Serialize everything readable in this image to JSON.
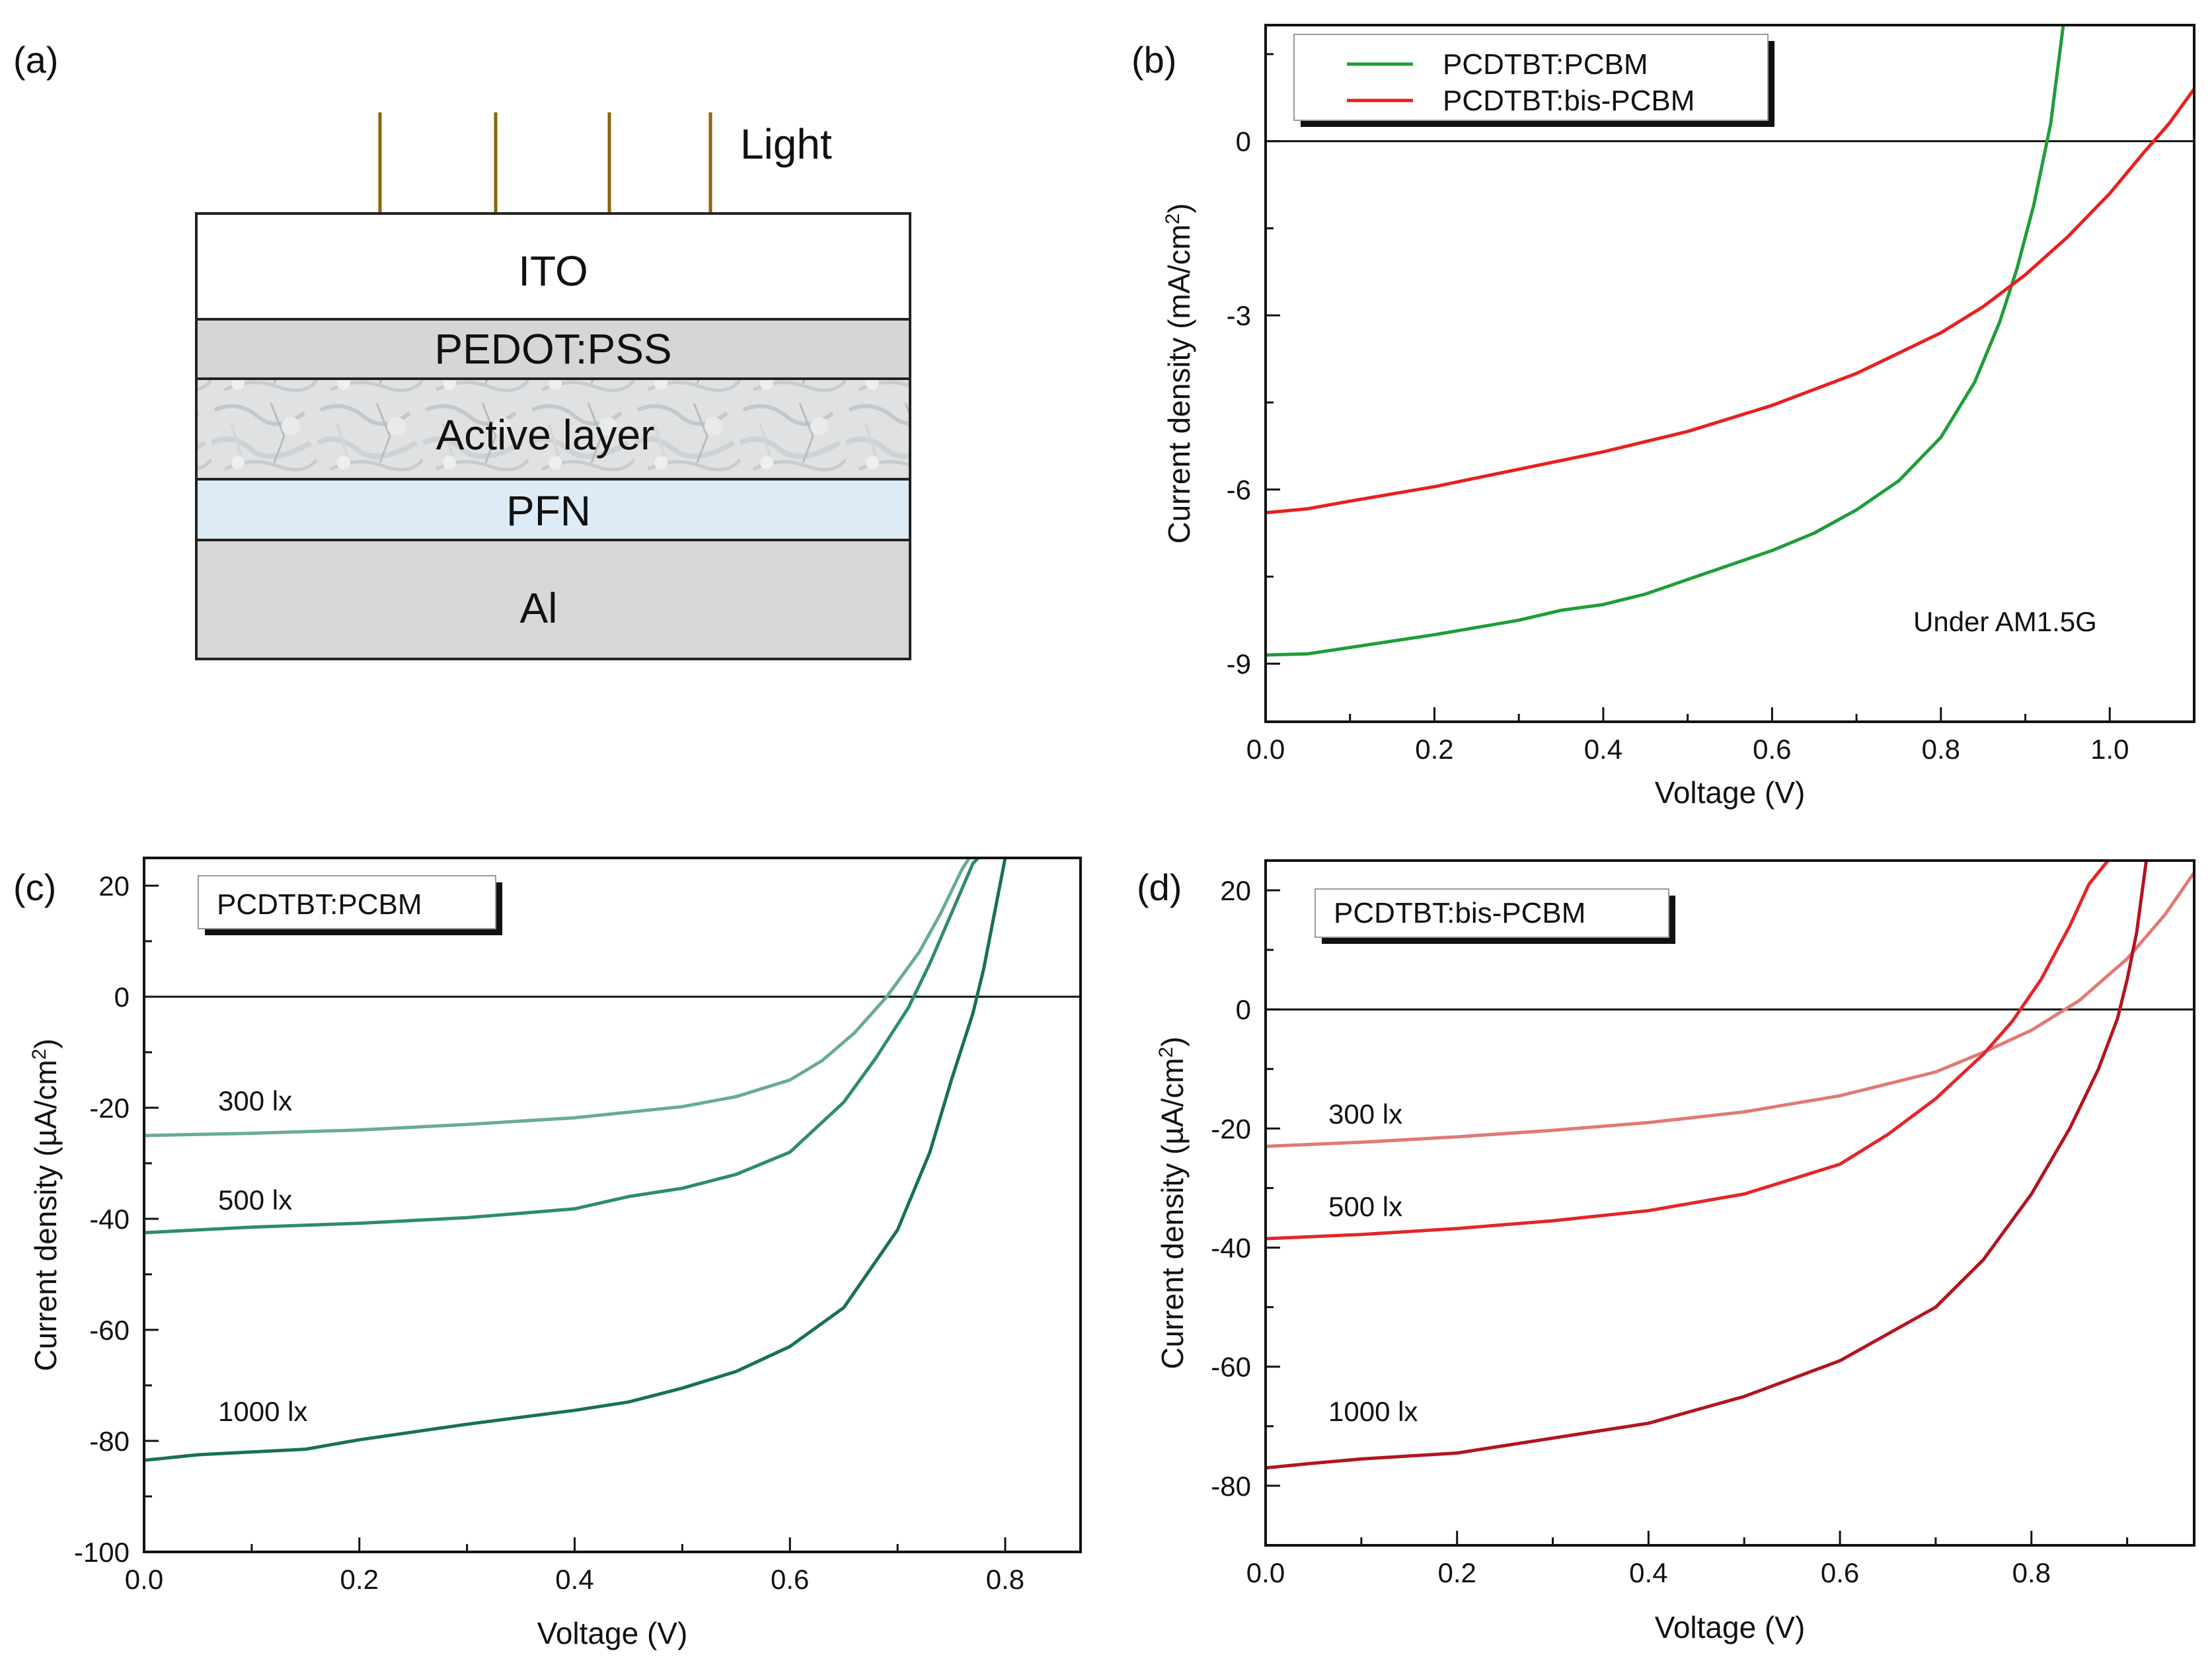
{
  "panel_a": {
    "label": "(a)",
    "light_label": "Light",
    "layers": [
      {
        "name": "ITO",
        "color": "#ffffff"
      },
      {
        "name": "PEDOT:PSS",
        "color": "#d6d6d6"
      },
      {
        "name": "Active layer",
        "color": "#dcdfe0"
      },
      {
        "name": "PFN",
        "color": "#ddebf6"
      },
      {
        "name": "Al",
        "color": "#d7d7d7"
      }
    ],
    "arrow_color": "#8b6508"
  },
  "chart_data": [
    {
      "id": "b",
      "panel_label": "(b)",
      "type": "line",
      "xlabel": "Voltage (V)",
      "ylabel_main": "Current density (mA/cm",
      "ylabel_sup": "2",
      "ylabel_end": ")",
      "xlim": [
        0.0,
        1.1
      ],
      "ylim": [
        -10.0,
        2.0
      ],
      "xticks": [
        0.0,
        0.2,
        0.4,
        0.6,
        0.8,
        1.0
      ],
      "xtick_labels": [
        "0.0",
        "0.2",
        "0.4",
        "0.6",
        "0.8",
        "1.0"
      ],
      "yticks": [
        0,
        -3,
        -6,
        -9
      ],
      "ytick_labels": [
        "0",
        "-3",
        "-6",
        "-9"
      ],
      "annotation": "Under AM1.5G",
      "legend": {
        "entries": [
          "PCDTBT:PCBM",
          "PCDTBT:bis-PCBM"
        ],
        "position": "top-left"
      },
      "series": [
        {
          "name": "PCDTBT:PCBM",
          "color": "#1f9d3a",
          "x": [
            0.0,
            0.05,
            0.1,
            0.2,
            0.3,
            0.35,
            0.4,
            0.45,
            0.5,
            0.55,
            0.6,
            0.65,
            0.7,
            0.75,
            0.8,
            0.84,
            0.87,
            0.89,
            0.91,
            0.93,
            0.945
          ],
          "y": [
            -8.85,
            -8.83,
            -8.72,
            -8.5,
            -8.25,
            -8.08,
            -7.98,
            -7.8,
            -7.55,
            -7.3,
            -7.05,
            -6.75,
            -6.35,
            -5.85,
            -5.1,
            -4.15,
            -3.1,
            -2.2,
            -1.1,
            0.3,
            2.0
          ]
        },
        {
          "name": "PCDTBT:bis-PCBM",
          "color": "#e8201f",
          "x": [
            0.0,
            0.05,
            0.1,
            0.2,
            0.3,
            0.4,
            0.5,
            0.6,
            0.7,
            0.8,
            0.85,
            0.9,
            0.95,
            1.0,
            1.04,
            1.07,
            1.1
          ],
          "y": [
            -6.4,
            -6.33,
            -6.2,
            -5.95,
            -5.65,
            -5.35,
            -5.0,
            -4.55,
            -4.0,
            -3.3,
            -2.85,
            -2.3,
            -1.65,
            -0.9,
            -0.2,
            0.3,
            0.9
          ]
        }
      ]
    },
    {
      "id": "c",
      "panel_label": "(c)",
      "type": "line",
      "xlabel": "Voltage (V)",
      "ylabel_main": "Current density (µA/cm",
      "ylabel_sup": "2",
      "ylabel_end": ")",
      "xlim": [
        0.0,
        0.87
      ],
      "ylim": [
        -100,
        25
      ],
      "xticks": [
        0.0,
        0.2,
        0.4,
        0.6,
        0.8
      ],
      "xtick_labels": [
        "0.0",
        "0.2",
        "0.4",
        "0.6",
        "0.8"
      ],
      "yticks": [
        20,
        0,
        -20,
        -40,
        -60,
        -80,
        -100
      ],
      "ytick_labels": [
        "20",
        "0",
        "-20",
        "-40",
        "-60",
        "-80",
        "-100"
      ],
      "legend": {
        "entries": [
          "PCDTBT:PCBM"
        ],
        "position": "top-left"
      },
      "series": [
        {
          "name": "300 lx",
          "color": "#6aab96",
          "x": [
            0.0,
            0.1,
            0.2,
            0.3,
            0.4,
            0.5,
            0.55,
            0.6,
            0.63,
            0.66,
            0.69,
            0.72,
            0.74,
            0.76,
            0.77
          ],
          "y": [
            -25,
            -24.6,
            -24,
            -23,
            -21.8,
            -19.8,
            -18,
            -15,
            -11.5,
            -6.5,
            0,
            8,
            15,
            23,
            26
          ]
        },
        {
          "name": "500 lx",
          "color": "#2e8b72",
          "x": [
            0.0,
            0.1,
            0.2,
            0.3,
            0.35,
            0.4,
            0.45,
            0.5,
            0.55,
            0.6,
            0.65,
            0.68,
            0.71,
            0.73,
            0.75,
            0.77,
            0.78
          ],
          "y": [
            -42.5,
            -41.5,
            -40.8,
            -39.8,
            -39,
            -38.2,
            -36,
            -34.5,
            -32,
            -28,
            -19,
            -11,
            -2,
            6,
            15,
            24,
            26
          ]
        },
        {
          "name": "1000 lx",
          "color": "#18705a",
          "x": [
            0.0,
            0.05,
            0.1,
            0.15,
            0.2,
            0.3,
            0.4,
            0.45,
            0.5,
            0.55,
            0.6,
            0.65,
            0.7,
            0.73,
            0.75,
            0.77,
            0.78,
            0.79,
            0.8
          ],
          "y": [
            -83.5,
            -82.5,
            -82,
            -81.5,
            -79.8,
            -77,
            -74.5,
            -73,
            -70.5,
            -67.5,
            -63,
            -56,
            -42,
            -28,
            -15,
            -3,
            5,
            15,
            25
          ]
        }
      ],
      "annotations": [
        "300 lx",
        "500 lx",
        "1000 lx"
      ]
    },
    {
      "id": "d",
      "panel_label": "(d)",
      "type": "line",
      "xlabel": "Voltage (V)",
      "ylabel_main": "Current density (µA/cm",
      "ylabel_sup": "2",
      "ylabel_end": ")",
      "xlim": [
        0.0,
        0.97
      ],
      "ylim": [
        -90,
        25
      ],
      "xticks": [
        0.0,
        0.2,
        0.4,
        0.6,
        0.8
      ],
      "xtick_labels": [
        "0.0",
        "0.2",
        "0.4",
        "0.6",
        "0.8"
      ],
      "yticks": [
        20,
        0,
        -20,
        -40,
        -60,
        -80
      ],
      "ytick_labels": [
        "20",
        "0",
        "-20",
        "-40",
        "-60",
        "-80"
      ],
      "legend": {
        "entries": [
          "PCDTBT:bis-PCBM"
        ],
        "position": "top-left"
      },
      "series": [
        {
          "name": "300 lx",
          "color": "#e07a74",
          "x": [
            0.0,
            0.1,
            0.2,
            0.3,
            0.4,
            0.5,
            0.6,
            0.7,
            0.75,
            0.8,
            0.85,
            0.9,
            0.94,
            0.97
          ],
          "y": [
            -23,
            -22.3,
            -21.4,
            -20.3,
            -19,
            -17.2,
            -14.5,
            -10.5,
            -7.2,
            -3.5,
            1.5,
            8.5,
            16,
            23
          ]
        },
        {
          "name": "500 lx",
          "color": "#e3262a",
          "x": [
            0.0,
            0.1,
            0.2,
            0.3,
            0.4,
            0.5,
            0.6,
            0.65,
            0.7,
            0.75,
            0.78,
            0.81,
            0.84,
            0.86,
            0.88
          ],
          "y": [
            -38.5,
            -37.8,
            -36.8,
            -35.5,
            -33.8,
            -31,
            -26,
            -21,
            -15,
            -7.5,
            -2,
            5,
            14,
            21,
            25
          ]
        },
        {
          "name": "1000 lx",
          "color": "#b2151f",
          "x": [
            0.0,
            0.05,
            0.1,
            0.2,
            0.3,
            0.4,
            0.5,
            0.6,
            0.7,
            0.75,
            0.8,
            0.84,
            0.87,
            0.89,
            0.9,
            0.91,
            0.92
          ],
          "y": [
            -77,
            -76.2,
            -75.5,
            -74.5,
            -72,
            -69.5,
            -65,
            -59,
            -50,
            -42,
            -31,
            -20,
            -10,
            -1.5,
            5,
            13,
            25
          ]
        }
      ],
      "annotations": [
        "300 lx",
        "500 lx",
        "1000 lx"
      ]
    }
  ]
}
